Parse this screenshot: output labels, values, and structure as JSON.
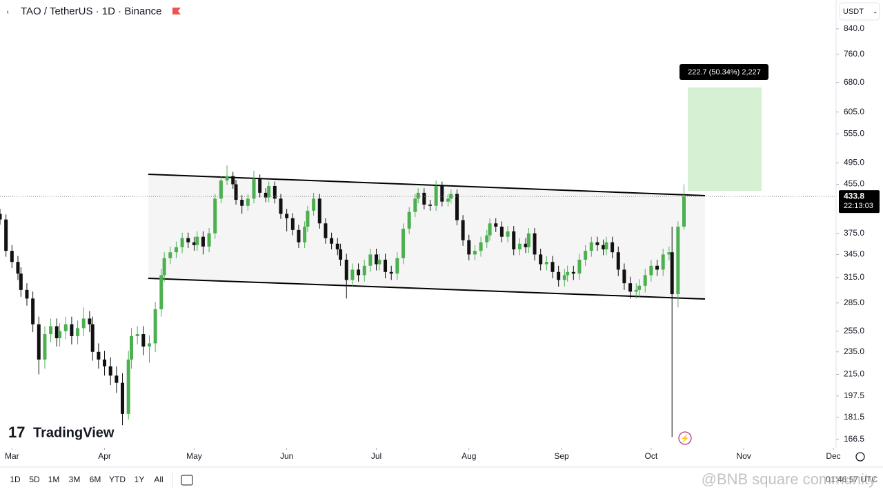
{
  "chart_data": {
    "type": "candlestick",
    "title": "TAO / TetherUS · 1D · Binance",
    "currency": "USDT",
    "x": [
      -4,
      -2,
      0,
      2,
      3,
      5,
      7,
      9,
      11,
      13,
      15,
      16,
      18,
      20,
      22,
      24,
      26,
      27,
      29,
      31,
      33,
      35,
      37,
      39,
      40,
      42,
      44,
      46,
      48,
      50,
      51,
      53,
      55,
      57,
      59,
      61,
      62,
      64,
      66,
      68,
      70,
      72,
      74,
      75,
      77,
      79,
      81,
      83,
      85,
      86,
      88,
      90,
      92,
      94,
      96,
      98,
      99,
      101,
      103,
      105,
      107,
      109,
      110,
      112,
      114,
      116,
      118,
      120,
      122,
      123,
      125,
      127,
      129,
      131,
      133,
      135,
      136,
      138,
      140,
      142,
      144,
      146,
      147,
      149,
      151,
      153,
      155,
      157,
      159,
      160,
      162,
      164,
      166,
      168,
      170,
      172,
      173,
      175,
      177,
      179,
      181,
      183,
      185,
      186,
      188,
      190,
      192,
      194,
      196,
      198,
      199,
      201,
      203,
      205,
      207,
      209,
      210,
      212,
      214,
      216,
      218,
      220,
      221,
      223,
      225
    ],
    "open": [
      405,
      396,
      350,
      335,
      320,
      300,
      290,
      262,
      228,
      252,
      260,
      248,
      255,
      262,
      250,
      258,
      268,
      262,
      235,
      228,
      222,
      214,
      208,
      184,
      228,
      250,
      252,
      240,
      243,
      278,
      318,
      340,
      348,
      355,
      368,
      362,
      358,
      370,
      356,
      375,
      430,
      462,
      470,
      455,
      428,
      418,
      430,
      465,
      440,
      432,
      452,
      430,
      405,
      398,
      380,
      362,
      385,
      410,
      430,
      390,
      368,
      360,
      352,
      338,
      312,
      325,
      318,
      330,
      345,
      332,
      338,
      322,
      320,
      340,
      382,
      408,
      430,
      440,
      420,
      418,
      452,
      425,
      430,
      438,
      395,
      365,
      345,
      350,
      362,
      372,
      390,
      385,
      370,
      378,
      352,
      360,
      355,
      375,
      345,
      332,
      335,
      322,
      312,
      318,
      322,
      320,
      338,
      350,
      362,
      358,
      352,
      362,
      348,
      325,
      308,
      298,
      300,
      305,
      318,
      330,
      325,
      345,
      348,
      295,
      385
    ],
    "high": [
      413,
      404,
      358,
      343,
      328,
      308,
      298,
      270,
      260,
      268,
      268,
      263,
      270,
      270,
      266,
      280,
      276,
      270,
      243,
      236,
      230,
      222,
      216,
      236,
      258,
      260,
      260,
      251,
      286,
      326,
      348,
      356,
      363,
      376,
      376,
      370,
      378,
      378,
      383,
      438,
      470,
      490,
      478,
      463,
      436,
      438,
      480,
      473,
      448,
      460,
      460,
      438,
      413,
      406,
      388,
      393,
      418,
      440,
      438,
      398,
      376,
      368,
      360,
      346,
      333,
      333,
      338,
      353,
      353,
      346,
      346,
      330,
      348,
      390,
      416,
      438,
      448,
      448,
      428,
      462,
      460,
      438,
      446,
      446,
      403,
      373,
      358,
      370,
      380,
      398,
      398,
      393,
      386,
      386,
      368,
      368,
      383,
      383,
      353,
      343,
      343,
      330,
      326,
      330,
      330,
      346,
      358,
      370,
      370,
      366,
      370,
      370,
      356,
      333,
      316,
      308,
      313,
      326,
      338,
      338,
      353,
      356,
      385,
      393,
      455
    ],
    "low": [
      388,
      342,
      327,
      312,
      292,
      282,
      254,
      215,
      220,
      244,
      240,
      240,
      247,
      242,
      242,
      250,
      254,
      227,
      220,
      214,
      206,
      200,
      176,
      180,
      220,
      242,
      232,
      225,
      235,
      270,
      310,
      332,
      340,
      347,
      354,
      350,
      350,
      345,
      348,
      367,
      422,
      454,
      447,
      420,
      405,
      410,
      422,
      432,
      424,
      424,
      422,
      397,
      378,
      372,
      354,
      354,
      377,
      402,
      382,
      360,
      352,
      344,
      330,
      290,
      304,
      310,
      310,
      322,
      324,
      324,
      314,
      312,
      312,
      332,
      374,
      400,
      422,
      412,
      410,
      410,
      417,
      417,
      422,
      387,
      357,
      337,
      337,
      342,
      354,
      364,
      377,
      362,
      362,
      344,
      344,
      347,
      347,
      337,
      324,
      324,
      314,
      304,
      304,
      310,
      312,
      312,
      330,
      342,
      350,
      344,
      344,
      340,
      317,
      300,
      290,
      290,
      292,
      297,
      310,
      317,
      317,
      337,
      168,
      280,
      380
    ],
    "close": [
      396,
      350,
      335,
      320,
      300,
      290,
      262,
      228,
      252,
      260,
      248,
      255,
      262,
      250,
      258,
      268,
      262,
      235,
      228,
      222,
      214,
      208,
      184,
      228,
      250,
      252,
      240,
      243,
      278,
      318,
      340,
      348,
      355,
      368,
      362,
      358,
      370,
      356,
      375,
      430,
      462,
      470,
      455,
      428,
      418,
      430,
      465,
      440,
      432,
      452,
      430,
      405,
      398,
      380,
      362,
      385,
      410,
      430,
      390,
      368,
      360,
      352,
      338,
      312,
      325,
      318,
      330,
      345,
      332,
      338,
      322,
      320,
      340,
      382,
      408,
      430,
      440,
      420,
      418,
      452,
      425,
      430,
      438,
      395,
      365,
      345,
      350,
      362,
      372,
      390,
      385,
      370,
      378,
      352,
      360,
      355,
      375,
      345,
      332,
      335,
      322,
      312,
      318,
      322,
      320,
      338,
      350,
      362,
      358,
      352,
      362,
      348,
      325,
      308,
      298,
      300,
      305,
      318,
      330,
      325,
      345,
      348,
      295,
      385,
      433.8
    ],
    "up_color": "#4caf50",
    "down_color": "#111111",
    "xlim": [
      -4,
      275
    ],
    "xticks": [
      {
        "value": 0,
        "label": "Mar"
      },
      {
        "value": 31,
        "label": "Apr"
      },
      {
        "value": 61,
        "label": "May"
      },
      {
        "value": 92,
        "label": "Jun"
      },
      {
        "value": 122,
        "label": "Jul"
      },
      {
        "value": 153,
        "label": "Aug"
      },
      {
        "value": 184,
        "label": "Sep"
      },
      {
        "value": 214,
        "label": "Oct"
      },
      {
        "value": 245,
        "label": "Nov"
      },
      {
        "value": 275,
        "label": "Dec"
      }
    ],
    "ylim": [
      161,
      941
    ],
    "log_scale": true,
    "grid": false,
    "yticks": [
      {
        "value": 840,
        "label": "840.0"
      },
      {
        "value": 760,
        "label": "760.0"
      },
      {
        "value": 680,
        "label": "680.0"
      },
      {
        "value": 605,
        "label": "605.0"
      },
      {
        "value": 555,
        "label": "555.0"
      },
      {
        "value": 495,
        "label": "495.0"
      },
      {
        "value": 455,
        "label": "455.0"
      },
      {
        "value": 375,
        "label": "375.0"
      },
      {
        "value": 345,
        "label": "345.0"
      },
      {
        "value": 315,
        "label": "315.0"
      },
      {
        "value": 285,
        "label": "285.0"
      },
      {
        "value": 255,
        "label": "255.0"
      },
      {
        "value": 235,
        "label": "235.0"
      },
      {
        "value": 215,
        "label": "215.0"
      },
      197.5,
      181.5,
      166.5
    ],
    "last_price": 433.8,
    "countdown": "22:13:03",
    "measure_label": "222.7 (50.34%) 2,227"
  },
  "toolbar": {
    "ranges": [
      "1D",
      "5D",
      "1M",
      "3M",
      "6M",
      "YTD",
      "1Y",
      "All"
    ],
    "clock": "01:46:57 UTC"
  },
  "branding": "TradingView",
  "watermark": "@BNB square community"
}
